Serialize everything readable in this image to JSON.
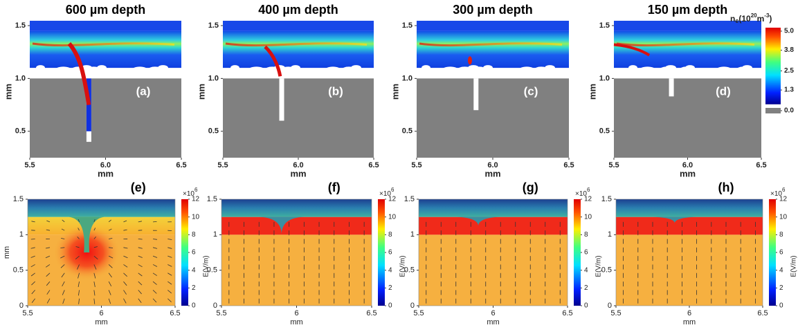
{
  "chart_data": [
    {
      "type": "heatmap",
      "title": "600 µm depth",
      "panel_label": "(a)",
      "x_label": "mm",
      "y_label": "mm",
      "xlim": [
        5.5,
        6.5
      ],
      "xticks": [
        5.5,
        {
          "value": 6,
          "label": "6.0"
        },
        6.5
      ],
      "ylim": [
        0.25,
        1.5
      ],
      "yticks": [
        0.5,
        {
          "value": 1,
          "label": "1.0"
        },
        1.5
      ]
    },
    {
      "type": "heatmap",
      "title": "400 µm depth",
      "panel_label": "(b)",
      "x_label": "mm",
      "y_label": "mm",
      "xlim": [
        5.5,
        6.5
      ],
      "xticks": [
        5.5,
        {
          "value": 6,
          "label": "6.0"
        },
        6.5
      ],
      "ylim": [
        0.25,
        1.5
      ],
      "yticks": [
        0.5,
        {
          "value": 1,
          "label": "1.0"
        },
        1.5
      ]
    },
    {
      "type": "heatmap",
      "title": "300 µm depth",
      "panel_label": "(c)",
      "x_label": "mm",
      "y_label": "mm",
      "xlim": [
        5.5,
        6.5
      ],
      "xticks": [
        5.5,
        {
          "value": 6,
          "label": "6.0"
        },
        6.5
      ],
      "ylim": [
        0.25,
        1.5
      ],
      "yticks": [
        0.5,
        {
          "value": 1,
          "label": "1.0"
        },
        1.5
      ]
    },
    {
      "type": "heatmap",
      "title": "150 µm depth",
      "panel_label": "(d)",
      "x_label": "mm",
      "y_label": "mm",
      "xlim": [
        5.5,
        6.5
      ],
      "xticks": [
        5.5,
        {
          "value": 6,
          "label": "6.0"
        },
        6.5
      ],
      "ylim": [
        0.25,
        1.5
      ],
      "yticks": [
        0.5,
        {
          "value": 1,
          "label": "1.0"
        },
        1.5
      ],
      "colorbar": {
        "title_parts": [
          "n",
          "e",
          "(10",
          "20",
          "m",
          "-3",
          ")"
        ],
        "lim": [
          0,
          5
        ],
        "ticks": [
          {
            "value": 5,
            "label": "5.0"
          },
          3.8,
          2.5,
          1.3,
          {
            "value": 0,
            "label": "0.0"
          }
        ]
      }
    },
    {
      "type": "field",
      "panel_label": "(e)",
      "x_label": "mm",
      "y_label": "mm",
      "xlim": [
        5.5,
        6.5
      ],
      "xticks": [
        5.5,
        6,
        6.5
      ],
      "ylim": [
        0,
        1.5
      ],
      "yticks": [
        0,
        0.5,
        1,
        1.5
      ],
      "colorbar": {
        "label": "E(V/m)",
        "multiplier_parts": [
          "×10",
          "6"
        ],
        "lim": [
          0,
          12
        ],
        "ticks": [
          0,
          2,
          4,
          6,
          8,
          10,
          12
        ]
      }
    },
    {
      "type": "field",
      "panel_label": "(f)",
      "x_label": "mm",
      "xlim": [
        5.5,
        6.5
      ],
      "xticks": [
        5.5,
        6,
        6.5
      ],
      "ylim": [
        0,
        1.5
      ],
      "yticks": [
        0,
        0.5,
        1,
        1.5
      ],
      "colorbar": {
        "label": "E(V/m)",
        "multiplier_parts": [
          "×10",
          "6"
        ],
        "lim": [
          0,
          12
        ],
        "ticks": [
          0,
          2,
          4,
          6,
          8,
          10,
          12
        ]
      }
    },
    {
      "type": "field",
      "panel_label": "(g)",
      "x_label": "mm",
      "xlim": [
        5.5,
        6.5
      ],
      "xticks": [
        5.5,
        6,
        6.5
      ],
      "ylim": [
        0,
        1.5
      ],
      "yticks": [
        0,
        0.5,
        1,
        1.5
      ],
      "colorbar": {
        "label": "E(V/m)",
        "multiplier_parts": [
          "×10",
          "6"
        ],
        "lim": [
          0,
          12
        ],
        "ticks": [
          0,
          2,
          4,
          6,
          8,
          10,
          12
        ]
      }
    },
    {
      "type": "field",
      "panel_label": "(h)",
      "x_label": "mm",
      "xlim": [
        5.5,
        6.5
      ],
      "xticks": [
        5.5,
        6,
        6.5
      ],
      "ylim": [
        0,
        1.5
      ],
      "yticks": [
        0,
        0.5,
        1,
        1.5
      ],
      "colorbar": {
        "label": "E(V/m)",
        "multiplier_parts": [
          "×10",
          "6"
        ],
        "lim": [
          0,
          12
        ],
        "ticks": [
          0,
          2,
          4,
          6,
          8,
          10,
          12
        ]
      }
    }
  ]
}
